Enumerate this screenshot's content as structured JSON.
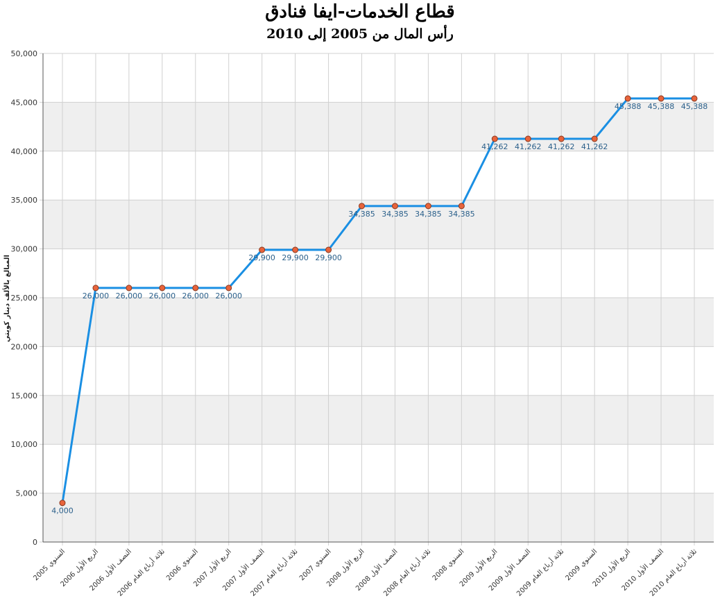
{
  "chart_data": {
    "type": "line",
    "title": "قطاع الخدمات-ايفا فنادق",
    "subtitle": "رأس المال من 2005 إلى 2010",
    "ylabel": "المبالغ بالألف دينار كويتي",
    "xlabel": "",
    "ylim": [
      0,
      50000
    ],
    "yticks": [
      "0",
      "5,000",
      "10,000",
      "15,000",
      "20,000",
      "25,000",
      "30,000",
      "35,000",
      "40,000",
      "45,000",
      "50,000"
    ],
    "grid": true,
    "line_color": "#1a8fe3",
    "marker_color": "#e8643c",
    "band_color": "#efefef",
    "categories": [
      "السنوي 2005",
      "الربع الأول 2006",
      "النصف الأول 2006",
      "ثلاثة أرباع العام 2006",
      "السنوي 2006",
      "الربع الأول 2007",
      "النصف الأول 2007",
      "ثلاثة أرباع العام 2007",
      "السنوي 2007",
      "الربع الأول 2008",
      "النصف الأول 2008",
      "ثلاثة أرباع العام 2008",
      "السنوي 2008",
      "الربع الأول 2009",
      "النصف الأول 2009",
      "ثلاثة أرباع العام 2009",
      "السنوي 2009",
      "الربع الأول 2010",
      "النصف الأول 2010",
      "ثلاثة أرباع العام 2010"
    ],
    "values": [
      4000,
      26000,
      26000,
      26000,
      26000,
      26000,
      29900,
      29900,
      29900,
      34385,
      34385,
      34385,
      34385,
      41262,
      41262,
      41262,
      41262,
      45388,
      45388,
      45388
    ],
    "value_labels": [
      "4,000",
      "26,000",
      "26,000",
      "26,000",
      "26,000",
      "26,000",
      "29,900",
      "29,900",
      "29,900",
      "34,385",
      "34,385",
      "34,385",
      "34,385",
      "41,262",
      "41,262",
      "41,262",
      "41,262",
      "45,388",
      "45,388",
      "45,388"
    ]
  }
}
